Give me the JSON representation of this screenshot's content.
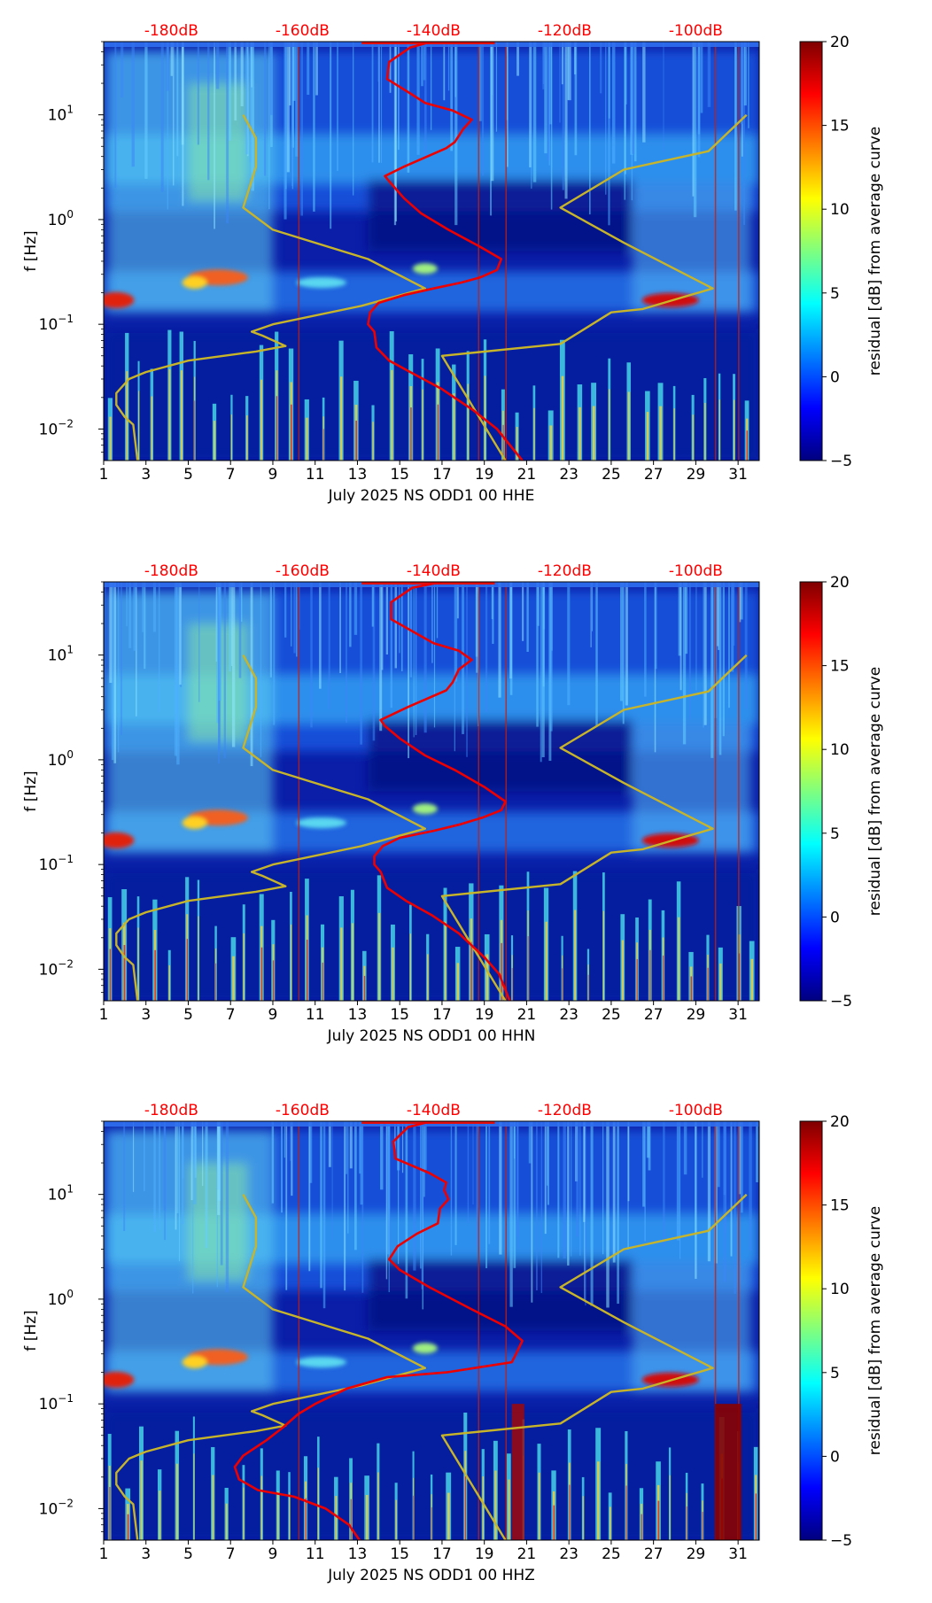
{
  "figure": {
    "colorbar": {
      "label": "residual [dB] from average curve",
      "ticks": [
        "20",
        "15",
        "10",
        "5",
        "0",
        "−5"
      ],
      "colormap": "jet",
      "range": [
        -5,
        20
      ]
    },
    "top_axis_labels": [
      "-180dB",
      "-160dB",
      "-140dB",
      "-120dB",
      "-100dB"
    ],
    "top_axis_color": "#ff0000",
    "noise_model_color": "#c8b428",
    "psd_curve_color": "#ee0000",
    "ylabel": "f [Hz]",
    "y_tick_labels": [
      {
        "base": "10",
        "exp": "1",
        "value": 10
      },
      {
        "base": "10",
        "exp": "0",
        "value": 1
      },
      {
        "base": "10",
        "exp": "−1",
        "value": 0.1
      },
      {
        "base": "10",
        "exp": "−2",
        "value": 0.01
      }
    ],
    "x_tick_labels": [
      "1",
      "3",
      "5",
      "7",
      "9",
      "11",
      "13",
      "15",
      "17",
      "19",
      "21",
      "23",
      "25",
      "27",
      "29",
      "31"
    ]
  },
  "chart_data": [
    {
      "type": "heatmap",
      "title": "",
      "xlabel": "July 2025 NS ODD1 00 HHE",
      "ylabel": "f [Hz]",
      "xlim": [
        1,
        32
      ],
      "ylim": [
        0.005,
        50
      ],
      "yscale": "log",
      "top_axis": {
        "labels": [
          "-180dB",
          "-160dB",
          "-140dB",
          "-120dB",
          "-100dB"
        ],
        "values_day": [
          4.2,
          10.4,
          16.6,
          22.8,
          29.0
        ]
      },
      "series": [
        {
          "name": "noise model (high/low)",
          "color": "#c8b428",
          "points": [
            [
              7.6,
              10
            ],
            [
              8.2,
              6
            ],
            [
              8.2,
              3.2
            ],
            [
              7.6,
              1.3
            ],
            [
              9,
              0.8
            ],
            [
              13.5,
              0.42
            ],
            [
              16.2,
              0.22
            ],
            [
              13.2,
              0.15
            ],
            [
              9,
              0.1
            ],
            [
              8,
              0.085
            ],
            [
              8.5,
              0.078
            ],
            [
              9.6,
              0.062
            ],
            [
              8.2,
              0.055
            ],
            [
              5,
              0.045
            ],
            [
              3,
              0.035
            ],
            [
              2.2,
              0.03
            ],
            [
              1.6,
              0.022
            ],
            [
              1.6,
              0.017
            ],
            [
              2,
              0.013
            ],
            [
              2.4,
              0.011
            ],
            [
              2.6,
              0.005
            ]
          ]
        },
        {
          "name": "noise model (right)",
          "color": "#c8b428",
          "points": [
            [
              31.4,
              10
            ],
            [
              29.6,
              4.5
            ],
            [
              25.6,
              3
            ],
            [
              22.6,
              1.3
            ],
            [
              25.6,
              0.6
            ],
            [
              29.8,
              0.22
            ],
            [
              26.5,
              0.14
            ],
            [
              25,
              0.13
            ],
            [
              22.6,
              0.065
            ],
            [
              17,
              0.05
            ],
            [
              20,
              0.005
            ]
          ]
        },
        {
          "name": "PSD median",
          "color": "#ee0000",
          "points": [
            [
              16.5,
              50
            ],
            [
              15.5,
              44
            ],
            [
              14.5,
              32
            ],
            [
              14.4,
              22
            ],
            [
              15.5,
              16
            ],
            [
              16.2,
              13
            ],
            [
              17.5,
              11
            ],
            [
              18.4,
              9
            ],
            [
              18,
              7.3
            ],
            [
              17.6,
              5.5
            ],
            [
              17.2,
              4.8
            ],
            [
              15.2,
              3.2
            ],
            [
              14.3,
              2.6
            ],
            [
              14.6,
              2.2
            ],
            [
              15.2,
              1.6
            ],
            [
              16,
              1.15
            ],
            [
              17.3,
              0.8
            ],
            [
              18.8,
              0.55
            ],
            [
              19.8,
              0.42
            ],
            [
              19.6,
              0.33
            ],
            [
              18.8,
              0.28
            ],
            [
              17.9,
              0.25
            ],
            [
              16.6,
              0.22
            ],
            [
              15.2,
              0.19
            ],
            [
              14,
              0.16
            ],
            [
              13.6,
              0.13
            ],
            [
              13.5,
              0.1
            ],
            [
              13.8,
              0.085
            ],
            [
              13.9,
              0.06
            ],
            [
              14.5,
              0.045
            ],
            [
              15.5,
              0.035
            ],
            [
              17,
              0.024
            ],
            [
              18.5,
              0.015
            ],
            [
              19.6,
              0.01
            ],
            [
              20.8,
              0.005
            ]
          ]
        }
      ]
    },
    {
      "type": "heatmap",
      "title": "",
      "xlabel": "July 2025 NS ODD1 00 HHN",
      "ylabel": "f [Hz]",
      "xlim": [
        1,
        32
      ],
      "ylim": [
        0.005,
        50
      ],
      "yscale": "log",
      "top_axis": {
        "labels": [
          "-180dB",
          "-160dB",
          "-140dB",
          "-120dB",
          "-100dB"
        ],
        "values_day": [
          4.2,
          10.4,
          16.6,
          22.8,
          29.0
        ]
      },
      "series": [
        {
          "name": "noise model (high/low)",
          "color": "#c8b428",
          "points": [
            [
              7.6,
              10
            ],
            [
              8.2,
              6
            ],
            [
              8.2,
              3.2
            ],
            [
              7.6,
              1.3
            ],
            [
              9,
              0.8
            ],
            [
              13.5,
              0.42
            ],
            [
              16.2,
              0.22
            ],
            [
              13.2,
              0.15
            ],
            [
              9,
              0.1
            ],
            [
              8,
              0.085
            ],
            [
              8.5,
              0.078
            ],
            [
              9.6,
              0.062
            ],
            [
              8.2,
              0.055
            ],
            [
              5,
              0.045
            ],
            [
              3,
              0.035
            ],
            [
              2.2,
              0.03
            ],
            [
              1.6,
              0.022
            ],
            [
              1.6,
              0.017
            ],
            [
              2,
              0.013
            ],
            [
              2.4,
              0.011
            ],
            [
              2.6,
              0.005
            ]
          ]
        },
        {
          "name": "noise model (right)",
          "color": "#c8b428",
          "points": [
            [
              31.4,
              10
            ],
            [
              29.6,
              4.5
            ],
            [
              25.6,
              3
            ],
            [
              22.6,
              1.3
            ],
            [
              25.6,
              0.6
            ],
            [
              29.8,
              0.22
            ],
            [
              26.5,
              0.14
            ],
            [
              25,
              0.13
            ],
            [
              22.6,
              0.065
            ],
            [
              17,
              0.05
            ],
            [
              20,
              0.005
            ]
          ]
        },
        {
          "name": "PSD median",
          "color": "#ee0000",
          "points": [
            [
              17,
              50
            ],
            [
              15.6,
              44
            ],
            [
              14.6,
              32
            ],
            [
              14.6,
              22
            ],
            [
              15.8,
              16
            ],
            [
              16.6,
              13
            ],
            [
              17.8,
              11
            ],
            [
              18.4,
              9
            ],
            [
              17.8,
              7.3
            ],
            [
              17.5,
              5.5
            ],
            [
              17.2,
              4.6
            ],
            [
              15.4,
              3.2
            ],
            [
              14.1,
              2.4
            ],
            [
              14.3,
              2.1
            ],
            [
              15,
              1.6
            ],
            [
              16.2,
              1.1
            ],
            [
              17.6,
              0.8
            ],
            [
              19,
              0.55
            ],
            [
              20,
              0.4
            ],
            [
              19.8,
              0.33
            ],
            [
              18.9,
              0.28
            ],
            [
              17.8,
              0.24
            ],
            [
              16.6,
              0.21
            ],
            [
              15,
              0.18
            ],
            [
              14.2,
              0.15
            ],
            [
              13.8,
              0.12
            ],
            [
              13.8,
              0.1
            ],
            [
              14.1,
              0.085
            ],
            [
              14.4,
              0.06
            ],
            [
              15.3,
              0.045
            ],
            [
              16.5,
              0.033
            ],
            [
              17.8,
              0.022
            ],
            [
              19,
              0.013
            ],
            [
              19.7,
              0.009
            ],
            [
              20.2,
              0.005
            ]
          ]
        }
      ]
    },
    {
      "type": "heatmap",
      "title": "",
      "xlabel": "July 2025 NS ODD1 00 HHZ",
      "ylabel": "f [Hz]",
      "xlim": [
        1,
        32
      ],
      "ylim": [
        0.005,
        50
      ],
      "yscale": "log",
      "top_axis": {
        "labels": [
          "-180dB",
          "-160dB",
          "-140dB",
          "-120dB",
          "-100dB"
        ],
        "values_day": [
          4.2,
          10.4,
          16.6,
          22.8,
          29.0
        ]
      },
      "series": [
        {
          "name": "noise model (high/low)",
          "color": "#c8b428",
          "points": [
            [
              7.6,
              10
            ],
            [
              8.2,
              6
            ],
            [
              8.2,
              3.2
            ],
            [
              7.6,
              1.3
            ],
            [
              9,
              0.8
            ],
            [
              13.5,
              0.42
            ],
            [
              16.2,
              0.22
            ],
            [
              13.2,
              0.15
            ],
            [
              9,
              0.1
            ],
            [
              8,
              0.085
            ],
            [
              8.5,
              0.078
            ],
            [
              9.6,
              0.062
            ],
            [
              8.2,
              0.055
            ],
            [
              5,
              0.045
            ],
            [
              3,
              0.035
            ],
            [
              2.2,
              0.03
            ],
            [
              1.6,
              0.022
            ],
            [
              1.6,
              0.017
            ],
            [
              2,
              0.013
            ],
            [
              2.4,
              0.011
            ],
            [
              2.6,
              0.005
            ]
          ]
        },
        {
          "name": "noise model (right)",
          "color": "#c8b428",
          "points": [
            [
              31.4,
              10
            ],
            [
              29.6,
              4.5
            ],
            [
              25.6,
              3
            ],
            [
              22.6,
              1.3
            ],
            [
              25.6,
              0.6
            ],
            [
              29.8,
              0.22
            ],
            [
              26.5,
              0.14
            ],
            [
              25,
              0.13
            ],
            [
              22.6,
              0.065
            ],
            [
              17,
              0.05
            ],
            [
              20,
              0.005
            ]
          ]
        },
        {
          "name": "PSD median",
          "color": "#ee0000",
          "points": [
            [
              16.5,
              50
            ],
            [
              15.4,
              44
            ],
            [
              14.7,
              32
            ],
            [
              14.8,
              22
            ],
            [
              16.4,
              16
            ],
            [
              17.2,
              13
            ],
            [
              17.1,
              11
            ],
            [
              17.3,
              9
            ],
            [
              16.9,
              7.3
            ],
            [
              16.8,
              5.3
            ],
            [
              15.8,
              4.2
            ],
            [
              14.9,
              3.2
            ],
            [
              14.5,
              2.4
            ],
            [
              15,
              1.9
            ],
            [
              16.4,
              1.3
            ],
            [
              18.4,
              0.8
            ],
            [
              20,
              0.55
            ],
            [
              20.8,
              0.4
            ],
            [
              20.5,
              0.3
            ],
            [
              20.3,
              0.25
            ],
            [
              17.2,
              0.2
            ],
            [
              14.4,
              0.18
            ],
            [
              12.5,
              0.14
            ],
            [
              11,
              0.1
            ],
            [
              10.2,
              0.08
            ],
            [
              9.5,
              0.06
            ],
            [
              8.7,
              0.045
            ],
            [
              7.6,
              0.032
            ],
            [
              7.2,
              0.025
            ],
            [
              7.4,
              0.019
            ],
            [
              8.3,
              0.015
            ],
            [
              10,
              0.013
            ],
            [
              11.5,
              0.01
            ],
            [
              12.6,
              0.007
            ],
            [
              13.1,
              0.005
            ]
          ]
        }
      ]
    }
  ]
}
